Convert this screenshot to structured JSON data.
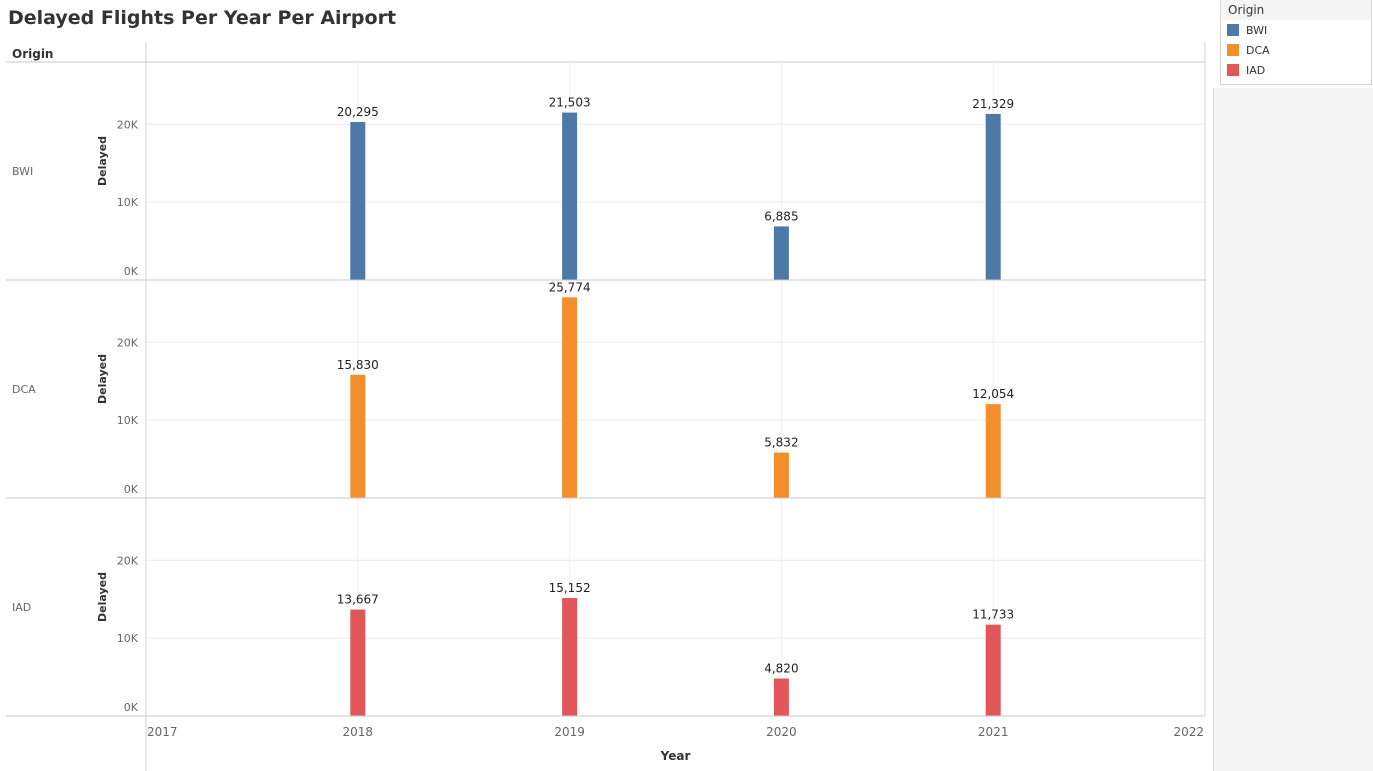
{
  "title": "Delayed Flights Per Year Per Airport",
  "legend": {
    "title": "Origin",
    "items": [
      {
        "label": "BWI",
        "color": "#4e79a7"
      },
      {
        "label": "DCA",
        "color": "#f28e2b"
      },
      {
        "label": "IAD",
        "color": "#e15759"
      }
    ]
  },
  "chart_data": {
    "type": "bar",
    "title": "Delayed Flights Per Year Per Airport",
    "row_header": "Origin",
    "xlabel": "Year",
    "ylabel": "Delayed",
    "x_ticks": [
      "2017",
      "2018",
      "2019",
      "2020",
      "2021",
      "2022"
    ],
    "xlim": [
      2017,
      2022
    ],
    "y_ticks": [
      {
        "value": 0,
        "label": "0K"
      },
      {
        "value": 10000,
        "label": "10K"
      },
      {
        "value": 20000,
        "label": "20K"
      }
    ],
    "ylim": [
      0,
      28000
    ],
    "grid": true,
    "series": [
      {
        "name": "BWI",
        "color": "#4e79a7",
        "x": [
          2018,
          2019,
          2020,
          2021
        ],
        "values": [
          20295,
          21503,
          6885,
          21329
        ],
        "labels": [
          "20,295",
          "21,503",
          "6,885",
          "21,329"
        ]
      },
      {
        "name": "DCA",
        "color": "#f28e2b",
        "x": [
          2018,
          2019,
          2020,
          2021
        ],
        "values": [
          15830,
          25774,
          5832,
          12054
        ],
        "labels": [
          "15,830",
          "25,774",
          "5,832",
          "12,054"
        ]
      },
      {
        "name": "IAD",
        "color": "#e15759",
        "x": [
          2018,
          2019,
          2020,
          2021
        ],
        "values": [
          13667,
          15152,
          4820,
          11733
        ],
        "labels": [
          "13,667",
          "15,152",
          "4,820",
          "11,733"
        ]
      }
    ]
  }
}
